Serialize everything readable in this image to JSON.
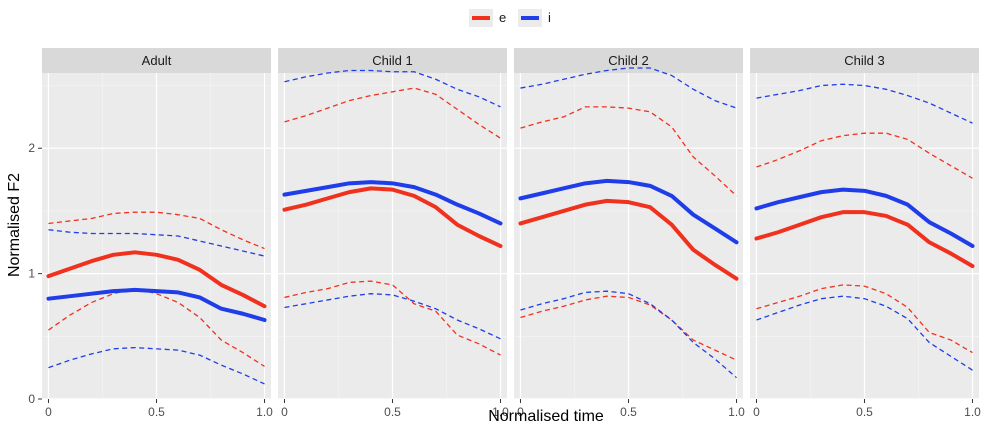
{
  "chart_data": {
    "type": "line",
    "xlabel": "Normalised time",
    "ylabel": "Normalised F2",
    "xlim": [
      -0.03,
      1.03
    ],
    "ylim": [
      0,
      2.6
    ],
    "x_ticks": [
      0,
      0.5,
      1.0
    ],
    "x_tick_labels": [
      "0",
      "0.5",
      "1.0"
    ],
    "y_ticks": [
      0,
      1,
      2
    ],
    "y_tick_labels": [
      "0",
      "1",
      "2"
    ],
    "grid": true,
    "legend": {
      "position": "top",
      "entries": [
        {
          "label": "e",
          "color": "#f0311e"
        },
        {
          "label": "i",
          "color": "#1f3de8"
        }
      ]
    },
    "x": [
      0,
      0.1,
      0.2,
      0.3,
      0.4,
      0.5,
      0.6,
      0.7,
      0.8,
      0.9,
      1.0
    ],
    "panels": [
      {
        "title": "Adult",
        "series": [
          {
            "name": "e",
            "kind": "mean",
            "values": [
              0.98,
              1.04,
              1.1,
              1.15,
              1.17,
              1.15,
              1.11,
              1.03,
              0.91,
              0.83,
              0.74
            ]
          },
          {
            "name": "e",
            "kind": "upper",
            "values": [
              1.4,
              1.42,
              1.44,
              1.48,
              1.49,
              1.49,
              1.47,
              1.44,
              1.35,
              1.27,
              1.2
            ]
          },
          {
            "name": "e",
            "kind": "lower",
            "values": [
              0.55,
              0.67,
              0.77,
              0.84,
              0.88,
              0.84,
              0.77,
              0.65,
              0.47,
              0.37,
              0.26
            ]
          },
          {
            "name": "i",
            "kind": "mean",
            "values": [
              0.8,
              0.82,
              0.84,
              0.86,
              0.87,
              0.86,
              0.85,
              0.81,
              0.72,
              0.68,
              0.63
            ]
          },
          {
            "name": "i",
            "kind": "upper",
            "values": [
              1.35,
              1.33,
              1.32,
              1.32,
              1.32,
              1.31,
              1.3,
              1.26,
              1.22,
              1.18,
              1.14
            ]
          },
          {
            "name": "i",
            "kind": "lower",
            "values": [
              0.25,
              0.31,
              0.36,
              0.4,
              0.41,
              0.4,
              0.39,
              0.35,
              0.27,
              0.2,
              0.12
            ]
          }
        ]
      },
      {
        "title": "Child 1",
        "series": [
          {
            "name": "e",
            "kind": "mean",
            "values": [
              1.51,
              1.55,
              1.6,
              1.65,
              1.68,
              1.67,
              1.62,
              1.53,
              1.39,
              1.3,
              1.22
            ]
          },
          {
            "name": "e",
            "kind": "upper",
            "values": [
              2.21,
              2.26,
              2.32,
              2.38,
              2.42,
              2.45,
              2.48,
              2.43,
              2.31,
              2.19,
              2.08
            ]
          },
          {
            "name": "e",
            "kind": "lower",
            "values": [
              0.81,
              0.85,
              0.88,
              0.93,
              0.94,
              0.91,
              0.76,
              0.7,
              0.51,
              0.44,
              0.35
            ]
          },
          {
            "name": "i",
            "kind": "mean",
            "values": [
              1.63,
              1.66,
              1.69,
              1.72,
              1.73,
              1.72,
              1.69,
              1.63,
              1.55,
              1.48,
              1.4
            ]
          },
          {
            "name": "i",
            "kind": "upper",
            "values": [
              2.53,
              2.57,
              2.6,
              2.62,
              2.62,
              2.61,
              2.61,
              2.55,
              2.47,
              2.41,
              2.33
            ]
          },
          {
            "name": "i",
            "kind": "lower",
            "values": [
              0.73,
              0.76,
              0.79,
              0.82,
              0.84,
              0.83,
              0.78,
              0.72,
              0.63,
              0.56,
              0.48
            ]
          }
        ]
      },
      {
        "title": "Child 2",
        "series": [
          {
            "name": "e",
            "kind": "mean",
            "values": [
              1.4,
              1.45,
              1.5,
              1.55,
              1.58,
              1.57,
              1.53,
              1.39,
              1.19,
              1.07,
              0.96
            ]
          },
          {
            "name": "e",
            "kind": "upper",
            "values": [
              2.16,
              2.21,
              2.25,
              2.33,
              2.33,
              2.32,
              2.29,
              2.17,
              1.93,
              1.78,
              1.62
            ]
          },
          {
            "name": "e",
            "kind": "lower",
            "values": [
              0.65,
              0.7,
              0.74,
              0.79,
              0.82,
              0.81,
              0.75,
              0.63,
              0.47,
              0.39,
              0.31
            ]
          },
          {
            "name": "i",
            "kind": "mean",
            "values": [
              1.6,
              1.64,
              1.68,
              1.72,
              1.74,
              1.73,
              1.7,
              1.62,
              1.47,
              1.36,
              1.25
            ]
          },
          {
            "name": "i",
            "kind": "upper",
            "values": [
              2.48,
              2.51,
              2.55,
              2.59,
              2.62,
              2.64,
              2.64,
              2.58,
              2.47,
              2.38,
              2.32
            ]
          },
          {
            "name": "i",
            "kind": "lower",
            "values": [
              0.71,
              0.76,
              0.8,
              0.85,
              0.86,
              0.84,
              0.76,
              0.63,
              0.45,
              0.32,
              0.17
            ]
          }
        ]
      },
      {
        "title": "Child 3",
        "series": [
          {
            "name": "e",
            "kind": "mean",
            "values": [
              1.28,
              1.33,
              1.39,
              1.45,
              1.49,
              1.49,
              1.46,
              1.39,
              1.25,
              1.16,
              1.06
            ]
          },
          {
            "name": "e",
            "kind": "upper",
            "values": [
              1.85,
              1.91,
              1.98,
              2.06,
              2.1,
              2.12,
              2.12,
              2.07,
              1.96,
              1.86,
              1.76
            ]
          },
          {
            "name": "e",
            "kind": "lower",
            "values": [
              0.72,
              0.77,
              0.82,
              0.88,
              0.91,
              0.9,
              0.84,
              0.73,
              0.53,
              0.47,
              0.37
            ]
          },
          {
            "name": "i",
            "kind": "mean",
            "values": [
              1.52,
              1.57,
              1.61,
              1.65,
              1.67,
              1.66,
              1.62,
              1.55,
              1.41,
              1.32,
              1.22
            ]
          },
          {
            "name": "i",
            "kind": "upper",
            "values": [
              2.4,
              2.43,
              2.46,
              2.5,
              2.51,
              2.5,
              2.47,
              2.42,
              2.36,
              2.28,
              2.2
            ]
          },
          {
            "name": "i",
            "kind": "lower",
            "values": [
              0.63,
              0.69,
              0.75,
              0.8,
              0.82,
              0.8,
              0.74,
              0.64,
              0.45,
              0.34,
              0.23
            ]
          }
        ]
      }
    ]
  }
}
